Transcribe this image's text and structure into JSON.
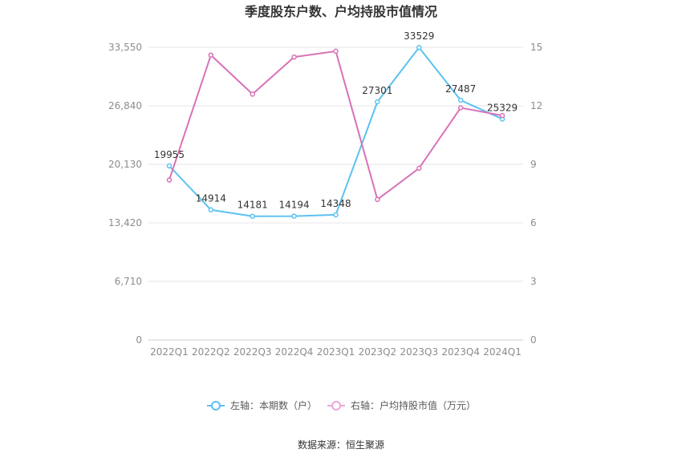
{
  "chart_data": {
    "type": "line",
    "title": "季度股东户数、户均持股市值情况",
    "categories": [
      "2022Q1",
      "2022Q2",
      "2022Q3",
      "2022Q4",
      "2023Q1",
      "2023Q2",
      "2023Q3",
      "2023Q4",
      "2024Q1"
    ],
    "y_left": {
      "ticks": [
        "0",
        "6,710",
        "13,420",
        "20,130",
        "26,840",
        "33,550"
      ],
      "ylim": [
        0,
        33550
      ]
    },
    "y_right": {
      "ticks": [
        "0",
        "3",
        "6",
        "9",
        "12",
        "15"
      ],
      "ylim": [
        0,
        15
      ]
    },
    "series": [
      {
        "name": "左轴：本期数（户）",
        "axis": "left",
        "color": "#5bc2f0",
        "values": [
          19955,
          14914,
          14181,
          14194,
          14348,
          27301,
          33529,
          27487,
          25329
        ],
        "labels": [
          "19955",
          "14914",
          "14181",
          "14194",
          "14348",
          "27301",
          "33529",
          "27487",
          "25329"
        ]
      },
      {
        "name": "右轴：户均持股市值（万元）",
        "axis": "right",
        "color": "#d872b8",
        "values": [
          8.2,
          14.6,
          12.6,
          14.5,
          14.8,
          7.2,
          8.8,
          11.9,
          11.5
        ]
      }
    ],
    "grid": true,
    "legend": "bottom-center"
  },
  "source": "数据来源：恒生聚源"
}
